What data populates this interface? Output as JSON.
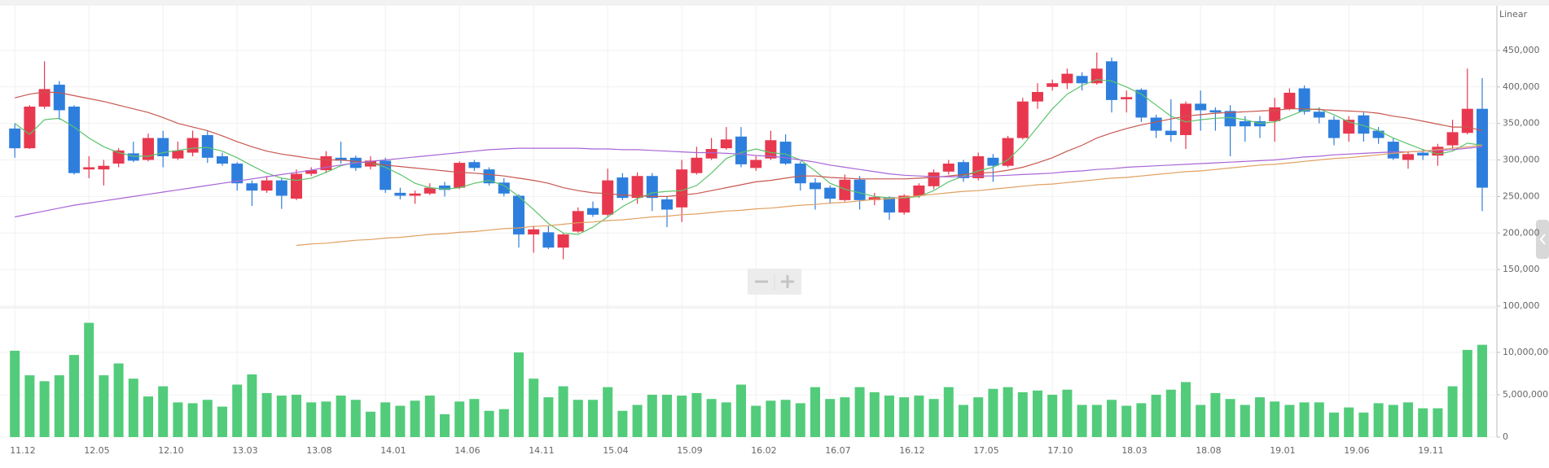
{
  "chart_data": [
    {
      "type": "candlestick",
      "scale_label": "Linear",
      "up_color": "#e8384f",
      "down_color": "#2e7fdd",
      "categories": [
        "11.12",
        null,
        null,
        null,
        null,
        "12.05",
        null,
        null,
        null,
        null,
        "12.10",
        null,
        null,
        null,
        null,
        "13.03",
        null,
        null,
        null,
        null,
        "13.08",
        null,
        null,
        null,
        null,
        "14.01",
        null,
        null,
        null,
        null,
        "14.06",
        null,
        null,
        null,
        null,
        "14.11",
        null,
        null,
        null,
        null,
        "15.04",
        null,
        null,
        null,
        null,
        "15.09",
        null,
        null,
        null,
        null,
        "16.02",
        null,
        null,
        null,
        null,
        "16.07",
        null,
        null,
        null,
        null,
        "16.12",
        null,
        null,
        null,
        null,
        "17.05",
        null,
        null,
        null,
        null,
        "17.10",
        null,
        null,
        null,
        null,
        "18.03",
        null,
        null,
        null,
        null,
        "18.08",
        null,
        null,
        null,
        null,
        "19.01",
        null,
        null,
        null,
        null,
        "19.06",
        null,
        null,
        null,
        null,
        "19.11",
        null,
        null,
        null,
        null
      ],
      "open": [
        343000,
        316000,
        373000,
        403000,
        373000,
        287000,
        287000,
        295000,
        309000,
        300000,
        330000,
        302000,
        310000,
        334000,
        305000,
        295000,
        268000,
        258000,
        272000,
        247000,
        281000,
        286000,
        303000,
        303000,
        291000,
        299000,
        255000,
        251000,
        254000,
        265000,
        262000,
        297000,
        287000,
        269000,
        251000,
        198000,
        201000,
        180000,
        202000,
        234000,
        225000,
        276000,
        248000,
        278000,
        246000,
        235000,
        282000,
        302000,
        316000,
        332000,
        289000,
        302000,
        325000,
        295000,
        269000,
        262000,
        245000,
        273000,
        245000,
        249000,
        228000,
        251000,
        264000,
        284000,
        297000,
        275000,
        303000,
        292000,
        330000,
        380000,
        400000,
        405000,
        415000,
        405000,
        435000,
        383000,
        396000,
        358000,
        340000,
        334000,
        377000,
        368000,
        367000,
        353000,
        353000,
        353000,
        370000,
        398000,
        366000,
        355000,
        336000,
        361000,
        340000,
        325000,
        300000,
        310000,
        306000,
        320000,
        337000,
        370000
      ],
      "high": [
        350000,
        375000,
        435000,
        408000,
        375000,
        305000,
        300000,
        316000,
        325000,
        336000,
        340000,
        325000,
        340000,
        340000,
        310000,
        297000,
        272000,
        278000,
        275000,
        287000,
        290000,
        312000,
        325000,
        306000,
        305000,
        303000,
        262000,
        258000,
        268000,
        270000,
        298000,
        300000,
        290000,
        275000,
        253000,
        210000,
        210000,
        200000,
        235000,
        243000,
        288000,
        282000,
        283000,
        282000,
        250000,
        300000,
        318000,
        330000,
        345000,
        345000,
        305000,
        340000,
        335000,
        298000,
        275000,
        265000,
        280000,
        278000,
        255000,
        250000,
        253000,
        268000,
        287000,
        300000,
        300000,
        310000,
        308000,
        333000,
        385000,
        405000,
        410000,
        425000,
        420000,
        447000,
        440000,
        395000,
        398000,
        362000,
        383000,
        380000,
        395000,
        372000,
        375000,
        360000,
        360000,
        385000,
        398000,
        402000,
        372000,
        360000,
        360000,
        365000,
        345000,
        330000,
        312000,
        315000,
        322000,
        355000,
        425000,
        412000
      ],
      "low": [
        303000,
        315000,
        370000,
        355000,
        280000,
        275000,
        265000,
        290000,
        297000,
        298000,
        290000,
        300000,
        305000,
        296000,
        292000,
        258000,
        237000,
        255000,
        233000,
        245000,
        278000,
        282000,
        295000,
        285000,
        287000,
        255000,
        246000,
        240000,
        252000,
        250000,
        260000,
        285000,
        265000,
        250000,
        180000,
        173000,
        178000,
        164000,
        200000,
        222000,
        222000,
        245000,
        240000,
        230000,
        208000,
        215000,
        280000,
        300000,
        314000,
        290000,
        285000,
        300000,
        293000,
        258000,
        232000,
        240000,
        243000,
        232000,
        238000,
        218000,
        225000,
        248000,
        260000,
        280000,
        270000,
        272000,
        270000,
        290000,
        328000,
        370000,
        395000,
        397000,
        395000,
        403000,
        365000,
        365000,
        352000,
        330000,
        325000,
        315000,
        340000,
        340000,
        305000,
        325000,
        330000,
        325000,
        368000,
        362000,
        350000,
        320000,
        325000,
        325000,
        322000,
        300000,
        288000,
        300000,
        292000,
        315000,
        335000,
        230000
      ],
      "close": [
        316000,
        373000,
        397000,
        368000,
        282000,
        290000,
        292000,
        313000,
        299000,
        330000,
        305000,
        313000,
        330000,
        303000,
        295000,
        268000,
        258000,
        272000,
        251000,
        281000,
        286000,
        305000,
        299000,
        289000,
        299000,
        259000,
        251000,
        254000,
        262000,
        259000,
        296000,
        289000,
        268000,
        254000,
        198000,
        205000,
        180000,
        198000,
        230000,
        225000,
        272000,
        248000,
        278000,
        248000,
        232000,
        287000,
        303000,
        315000,
        328000,
        294000,
        300000,
        327000,
        295000,
        268000,
        260000,
        247000,
        273000,
        245000,
        249000,
        228000,
        251000,
        265000,
        283000,
        295000,
        275000,
        305000,
        292000,
        330000,
        380000,
        393000,
        405000,
        418000,
        405000,
        425000,
        382000,
        386000,
        358000,
        340000,
        334000,
        377000,
        368000,
        365000,
        346000,
        346000,
        346000,
        372000,
        392000,
        366000,
        358000,
        330000,
        355000,
        336000,
        330000,
        302000,
        308000,
        306000,
        318000,
        338000,
        370000,
        262000
      ],
      "lines": [
        {
          "color": "#5cc36c",
          "values": [
            350000,
            335000,
            355000,
            357000,
            345000,
            330000,
            318000,
            310000,
            305000,
            305000,
            310000,
            313000,
            316000,
            317000,
            312000,
            303000,
            292000,
            282000,
            275000,
            272000,
            275000,
            283000,
            292000,
            297000,
            296000,
            290000,
            280000,
            268000,
            262000,
            260000,
            262000,
            268000,
            272000,
            265000,
            250000,
            232000,
            213000,
            200000,
            198000,
            208000,
            222000,
            236000,
            247000,
            255000,
            257000,
            258000,
            265000,
            282000,
            302000,
            310000,
            315000,
            310000,
            308000,
            300000,
            285000,
            268000,
            260000,
            255000,
            250000,
            248000,
            248000,
            250000,
            258000,
            270000,
            278000,
            285000,
            290000,
            300000,
            320000,
            345000,
            370000,
            390000,
            402000,
            410000,
            408000,
            400000,
            390000,
            375000,
            360000,
            352000,
            355000,
            357000,
            358000,
            355000,
            350000,
            352000,
            360000,
            368000,
            370000,
            362000,
            352000,
            347000,
            340000,
            330000,
            322000,
            314000,
            308000,
            312000,
            323000,
            320000
          ]
        },
        {
          "color": "#c8574f",
          "values": [
            385000,
            390000,
            393000,
            392000,
            388000,
            384000,
            380000,
            375000,
            370000,
            365000,
            358000,
            350000,
            345000,
            340000,
            333000,
            325000,
            318000,
            312000,
            308000,
            305000,
            302000,
            300000,
            300000,
            298000,
            296000,
            293000,
            291000,
            289000,
            287000,
            285000,
            283000,
            282000,
            280000,
            278000,
            275000,
            272000,
            268000,
            262000,
            258000,
            255000,
            254000,
            252000,
            251000,
            250000,
            250000,
            252000,
            254000,
            258000,
            262000,
            266000,
            270000,
            272000,
            275000,
            278000,
            278000,
            276000,
            275000,
            274000,
            274000,
            274000,
            274000,
            275000,
            276000,
            278000,
            280000,
            282000,
            283000,
            286000,
            290000,
            296000,
            303000,
            312000,
            320000,
            330000,
            337000,
            343000,
            348000,
            352000,
            356000,
            360000,
            362000,
            364000,
            365000,
            366000,
            367000,
            368000,
            370000,
            370000,
            369000,
            368000,
            367000,
            366000,
            364000,
            360000,
            357000,
            353000,
            349000,
            345000,
            345000,
            340000
          ]
        },
        {
          "color": "#a865d6",
          "values": [
            222000,
            226000,
            230000,
            234000,
            238000,
            241000,
            244000,
            247000,
            250000,
            253000,
            256000,
            259000,
            262000,
            265000,
            268000,
            271000,
            274000,
            277000,
            280000,
            283000,
            286000,
            290000,
            293000,
            296000,
            298000,
            300000,
            302000,
            304000,
            306000,
            308000,
            310000,
            312000,
            314000,
            315000,
            316000,
            316000,
            316000,
            316000,
            316000,
            315000,
            315000,
            314000,
            314000,
            313000,
            312000,
            311000,
            310000,
            310000,
            309000,
            308000,
            306000,
            305000,
            303000,
            300000,
            297000,
            293000,
            290000,
            287000,
            284000,
            281000,
            279000,
            278000,
            277000,
            277000,
            277000,
            278000,
            278000,
            279000,
            280000,
            281000,
            282000,
            284000,
            285000,
            287000,
            288000,
            290000,
            291000,
            292000,
            293000,
            294000,
            295000,
            296000,
            297000,
            298000,
            299000,
            300000,
            302000,
            304000,
            305000,
            307000,
            308000,
            309000,
            310000,
            311000,
            311000,
            312000,
            313000,
            314000,
            316000,
            318000
          ]
        },
        {
          "color": "#e0a060",
          "values": [
            null,
            null,
            null,
            null,
            null,
            null,
            null,
            null,
            null,
            null,
            null,
            null,
            null,
            null,
            null,
            null,
            null,
            null,
            null,
            183000,
            185000,
            186000,
            188000,
            190000,
            191000,
            193000,
            194000,
            196000,
            198000,
            199000,
            201000,
            202000,
            204000,
            206000,
            207000,
            209000,
            210000,
            212000,
            214000,
            215000,
            217000,
            218000,
            220000,
            222000,
            223000,
            225000,
            226000,
            228000,
            230000,
            231000,
            233000,
            234000,
            236000,
            238000,
            239000,
            241000,
            242000,
            244000,
            246000,
            247000,
            249000,
            251000,
            253000,
            255000,
            257000,
            258000,
            260000,
            262000,
            264000,
            266000,
            267000,
            269000,
            271000,
            273000,
            275000,
            276000,
            278000,
            280000,
            282000,
            284000,
            285000,
            287000,
            289000,
            291000,
            293000,
            294000,
            296000,
            298000,
            300000,
            302000,
            303000,
            305000,
            307000,
            309000,
            311000,
            312000,
            314000,
            316000,
            318000,
            320000
          ]
        }
      ],
      "ylim": [
        100000,
        500000
      ],
      "yticks": [
        {
          "value": 100000,
          "label": "100,000"
        },
        {
          "value": 150000,
          "label": "150,000"
        },
        {
          "value": 200000,
          "label": "200,000"
        },
        {
          "value": 250000,
          "label": "250,000"
        },
        {
          "value": 300000,
          "label": "300,000"
        },
        {
          "value": 350000,
          "label": "350,000"
        },
        {
          "value": 400000,
          "label": "400,000"
        },
        {
          "value": 450000,
          "label": "450,000"
        }
      ],
      "grid": true
    },
    {
      "type": "bar",
      "color": "#52cc7a",
      "values": [
        10200000,
        7300000,
        6600000,
        7300000,
        9700000,
        13500000,
        7300000,
        8700000,
        6900000,
        4800000,
        6000000,
        4100000,
        4000000,
        4400000,
        3600000,
        6200000,
        7400000,
        5200000,
        4900000,
        5000000,
        4100000,
        4200000,
        4900000,
        4400000,
        3000000,
        4100000,
        3700000,
        4300000,
        4900000,
        2700000,
        4200000,
        4500000,
        3100000,
        3300000,
        10000000,
        6900000,
        4700000,
        6000000,
        4400000,
        4400000,
        5900000,
        3100000,
        3800000,
        5000000,
        5000000,
        4900000,
        5200000,
        4500000,
        4100000,
        6200000,
        3700000,
        4300000,
        4400000,
        4000000,
        5900000,
        4500000,
        4700000,
        5900000,
        5300000,
        4900000,
        4700000,
        4900000,
        4500000,
        5900000,
        3800000,
        4700000,
        5700000,
        5900000,
        5300000,
        5500000,
        5000000,
        5600000,
        3800000,
        3800000,
        4400000,
        3700000,
        4000000,
        5000000,
        5600000,
        6500000,
        3800000,
        5200000,
        4500000,
        3800000,
        4700000,
        4200000,
        3800000,
        4100000,
        4100000,
        2900000,
        3500000,
        2900000,
        4000000,
        3800000,
        4100000,
        3400000,
        3400000,
        6000000,
        10300000,
        10900000
      ],
      "ylim": [
        0,
        15000000
      ],
      "yticks": [
        0,
        {
          "value": 5000000,
          "label": "5,000,000"
        },
        {
          "value": 10000000,
          "label": "10,000,000"
        }
      ],
      "grid": true
    }
  ]
}
